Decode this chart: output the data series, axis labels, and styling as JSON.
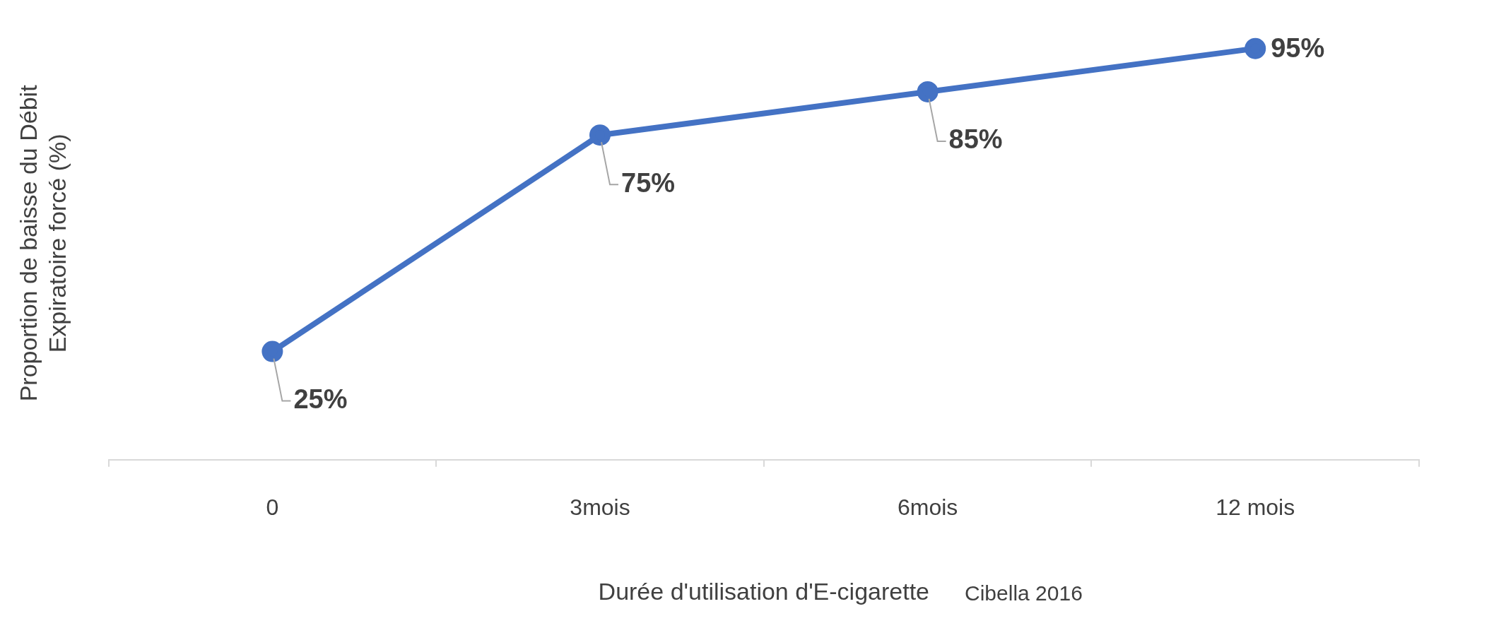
{
  "chart_data": {
    "type": "line",
    "xlabel": "Durée d'utilisation d'E-cigarette",
    "ylabel": "Proportion de baisse du Débit Expiratoire forcé (%)",
    "annotations": [
      "Cibella 2016"
    ],
    "categories": [
      "0",
      "3mois",
      "6mois",
      "12 mois"
    ],
    "series": [
      {
        "color": "#4472c4",
        "values": [
          25,
          75,
          85,
          95
        ],
        "value_labels": [
          "25%",
          "75%",
          "85%",
          "95%"
        ]
      }
    ],
    "tick_labels": "x",
    "grid": false,
    "legend": false,
    "marker": "circle",
    "line_style": "solid"
  }
}
